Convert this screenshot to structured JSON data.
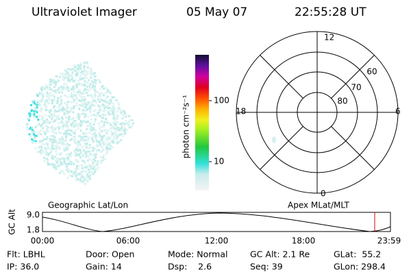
{
  "header": {
    "instrument": "Ultraviolet Imager",
    "date": "05 May 07",
    "time": "22:55:28 UT"
  },
  "colorbar": {
    "label": "photon cm⁻²s⁻¹",
    "ticks": [
      "100",
      "10"
    ]
  },
  "polar": {
    "lat_labels": [
      "60",
      "70",
      "80"
    ],
    "mlt_labels": [
      "12",
      "6",
      "0",
      "18"
    ]
  },
  "orbit_plot": {
    "left_title": "Geographic Lat/Lon",
    "right_title": "Apex MLat/MLT",
    "y_label": "GC Alt",
    "y_ticks": [
      "9.0",
      "1.8"
    ],
    "x_ticks": [
      "00:00",
      "06:00",
      "12:00",
      "18:00",
      "23:59"
    ]
  },
  "info": {
    "rows": [
      [
        "Flt: LBHL",
        "Door: Open",
        "Mode: Normal",
        "GC Alt: 2.1 Re",
        "GLat:  55.2"
      ],
      [
        "IP: 36.0",
        "Gain: 14",
        "Dsp:    2.6",
        "Seq: 39",
        "GLon: 298.4"
      ]
    ]
  }
}
